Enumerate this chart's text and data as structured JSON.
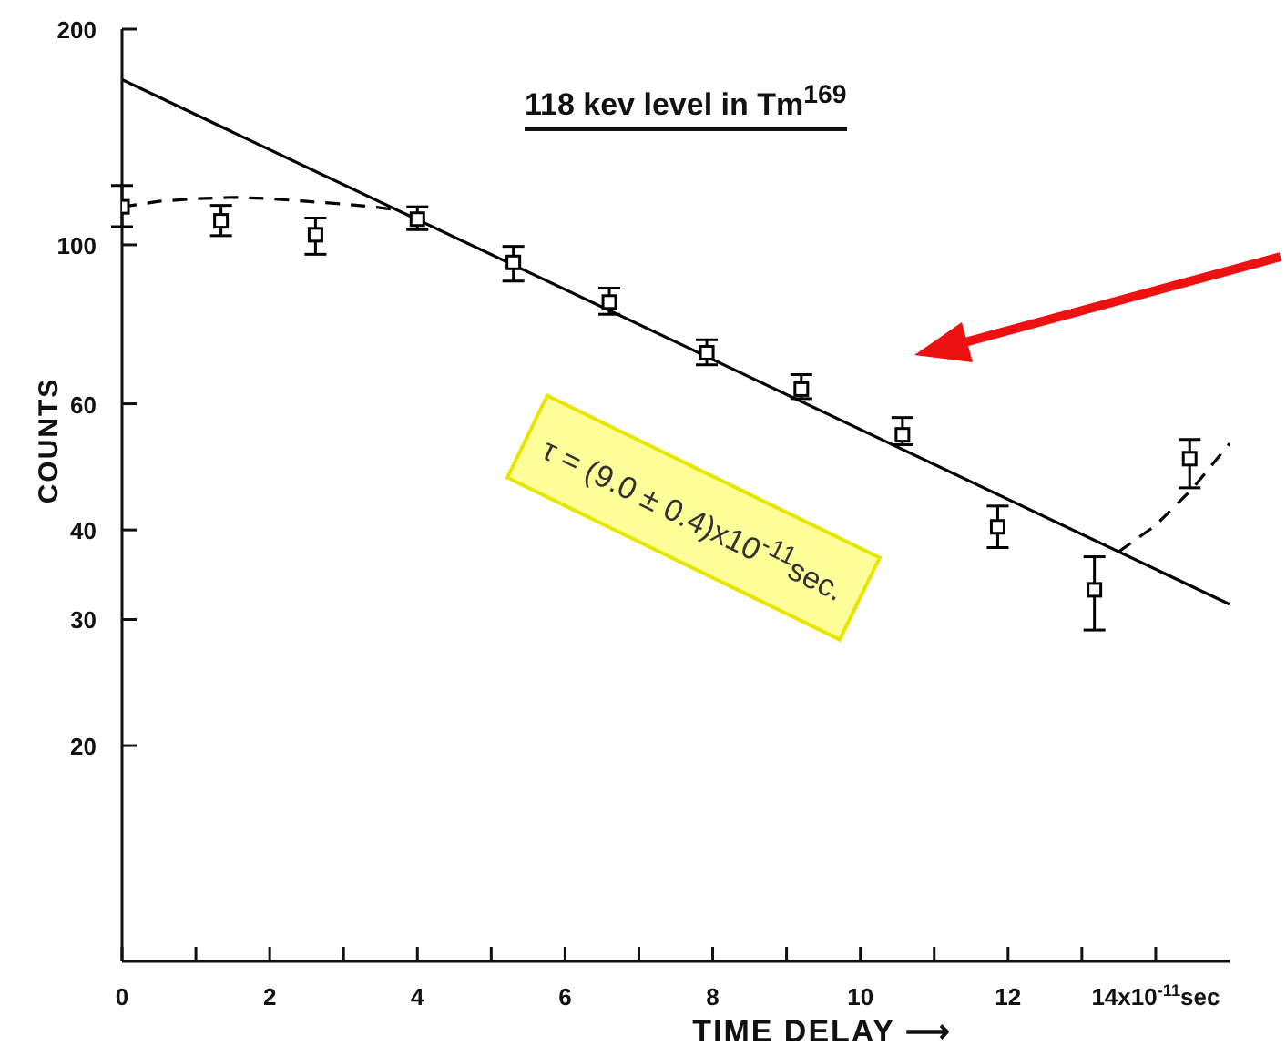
{
  "chart_data": {
    "type": "scatter",
    "title": "118 kev level in Tm$^{169}$",
    "xlabel": "TIME DELAY ⟶",
    "ylabel": "COUNTS",
    "annotations": [
      "τ = (9.0 ± 0.4)x10$^{-11}$sec."
    ],
    "log": "y",
    "xlim": [
      0,
      15
    ],
    "xticks": [
      0,
      {
        "value": 1,
        "label": null
      },
      2,
      {
        "value": 3,
        "label": null
      },
      4,
      {
        "value": 5,
        "label": null
      },
      6,
      {
        "value": 7,
        "label": null
      },
      8,
      {
        "value": 9,
        "label": null
      },
      10,
      {
        "value": 11,
        "label": null
      },
      12,
      {
        "value": 13,
        "label": null
      },
      {
        "value": 14,
        "label": "14x10$^{-11}$sec"
      }
    ],
    "ylim": [
      10,
      200
    ],
    "yticks": [
      20,
      30,
      40,
      60,
      100,
      200
    ],
    "series": [
      {
        "marker": "square",
        "color": "#000000",
        "x": [
          0,
          1.34,
          2.62,
          4.0,
          5.3,
          6.6,
          7.92,
          9.2,
          10.57,
          11.86,
          13.17,
          14.46
        ],
        "values": [
          113,
          108,
          103.3,
          108.6,
          94.5,
          83.2,
          70.7,
          62.9,
          54.3,
          40.4,
          33,
          50.3
        ],
        "errors": [
          [
            106,
            121
          ],
          [
            103,
            113.5
          ],
          [
            97,
            109
          ],
          [
            105,
            113
          ],
          [
            89,
            99.5
          ],
          [
            80,
            87
          ],
          [
            68,
            73.7
          ],
          [
            61,
            65.9
          ],
          [
            52.6,
            57.4
          ],
          [
            37.8,
            43.2
          ],
          [
            29,
            36.7
          ],
          [
            45.8,
            53.5
          ]
        ]
      },
      {
        "type": "line",
        "marker": "none",
        "color": "#000000",
        "line_style": "solid",
        "x": [
          0,
          15
        ],
        "values": [
          170,
          31.5
        ]
      },
      {
        "type": "line",
        "marker": "none",
        "color": "#000000",
        "line_style": "dashed",
        "x": [
          0,
          0.5,
          1,
          1.5,
          2,
          2.5,
          3,
          3.4,
          3.7,
          9,
          13.5,
          14,
          14.5,
          15
        ],
        "values": [
          113,
          115,
          116,
          116.5,
          116,
          115,
          114,
          113,
          112,
          null,
          37.3,
          40.6,
          45.7,
          52.8
        ]
      }
    ]
  }
}
